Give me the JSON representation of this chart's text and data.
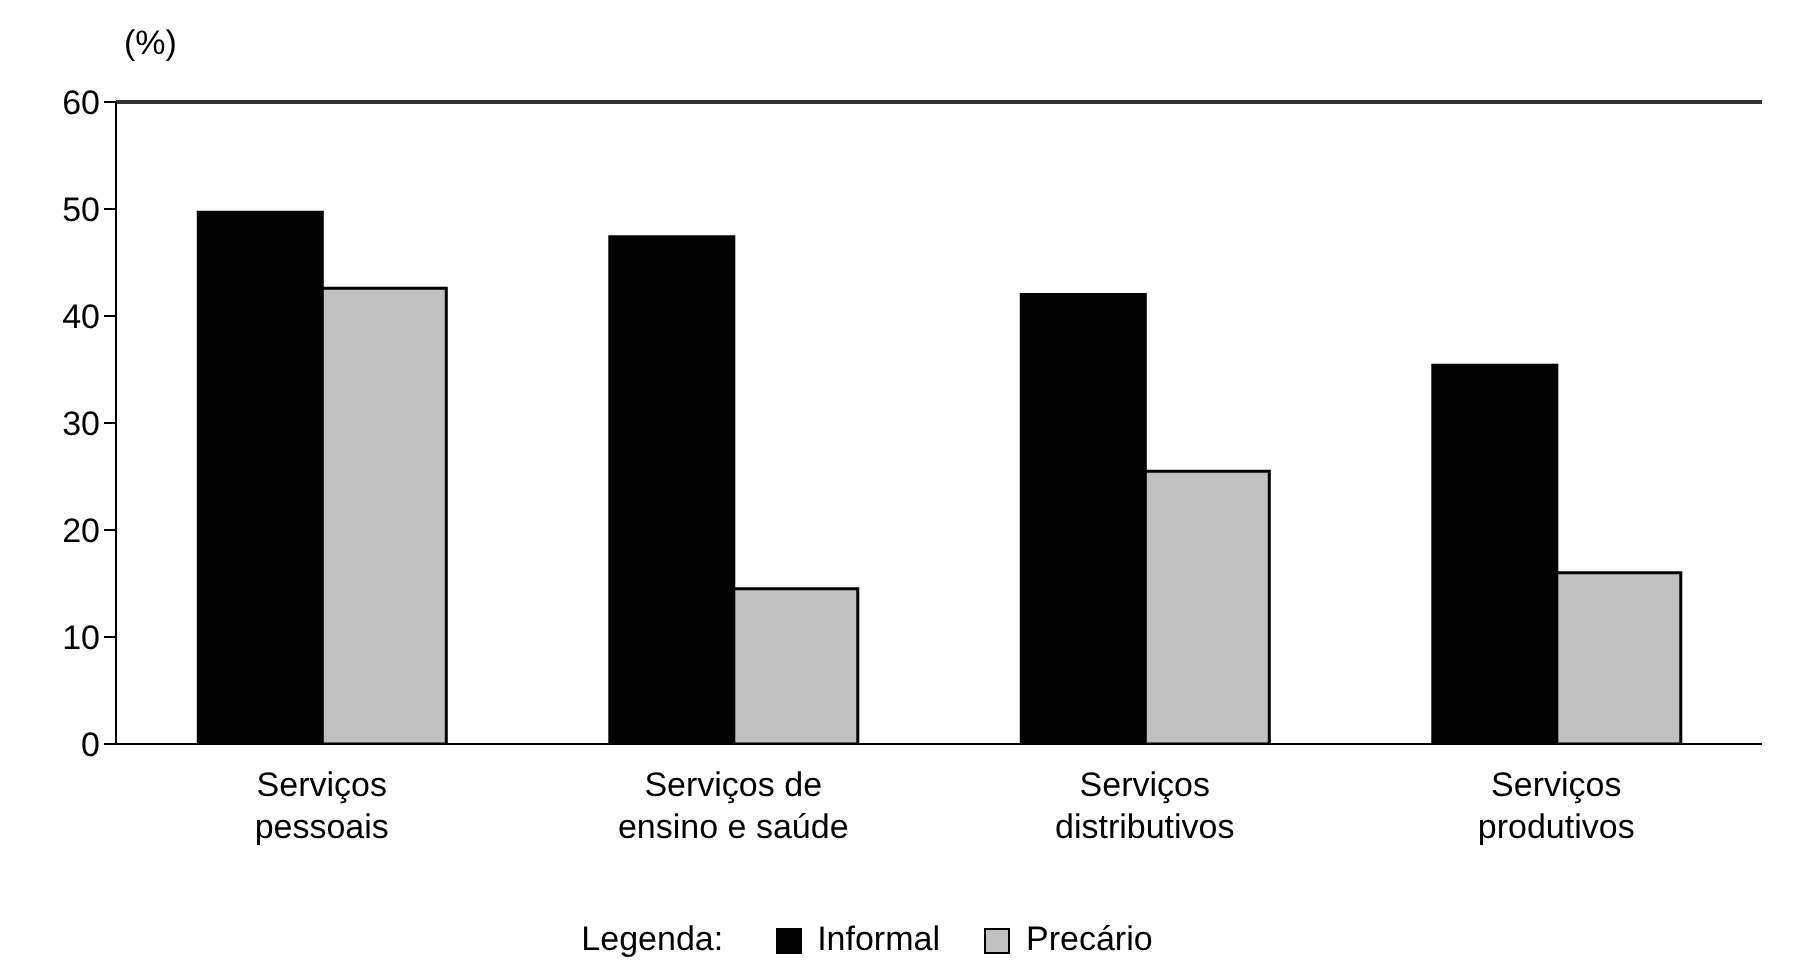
{
  "chart_data": {
    "type": "bar",
    "ylabel": "(%)",
    "legend_title": "Legenda:",
    "categories": [
      "Serviços pessoais",
      "Serviços de ensino e saúde",
      "Serviços distributivos",
      "Serviços produtivos"
    ],
    "series": [
      {
        "name": "Informal",
        "color": "#000000",
        "values": [
          49.7,
          47.4,
          42.0,
          35.4
        ]
      },
      {
        "name": "Precário",
        "color": "#c0c0c0",
        "values": [
          42.6,
          14.5,
          25.5,
          16.0
        ]
      }
    ],
    "ylim": [
      0,
      60
    ],
    "yticks": [
      0,
      10,
      20,
      30,
      40,
      50,
      60
    ],
    "legend": "bottom"
  }
}
